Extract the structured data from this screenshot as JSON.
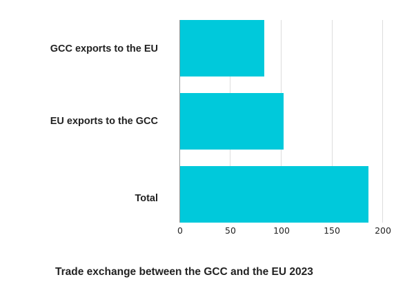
{
  "chart_data": {
    "type": "bar",
    "orientation": "horizontal",
    "title": "Trade exchange between the GCC and the EU 2023",
    "categories": [
      "GCC exports to the EU",
      "EU exports to the GCC",
      "Total"
    ],
    "values": [
      83.8,
      102.8,
      186.7
    ],
    "xlabel": "",
    "ylabel": "",
    "xlim": [
      0,
      200
    ],
    "xticks": [
      0,
      50,
      100,
      150,
      200
    ],
    "xtick_labels": [
      "0",
      "50",
      "100",
      "150",
      "200"
    ],
    "grid": true,
    "legend": false,
    "bar_color": "#00c9db"
  }
}
